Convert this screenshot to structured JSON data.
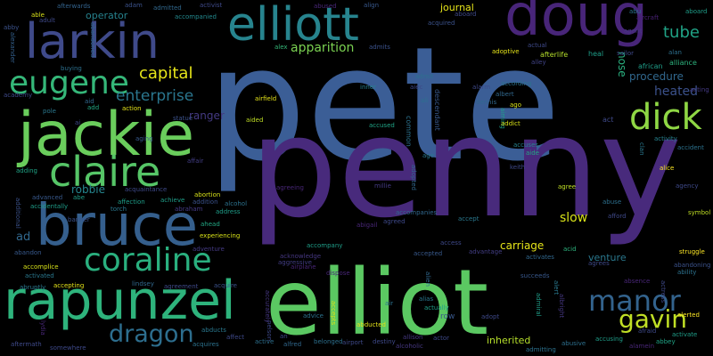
{
  "background": "#000000",
  "words": [
    {
      "text": "pete",
      "color": "#3b5e96"
    },
    {
      "text": "penny",
      "color": "#482a7c"
    },
    {
      "text": "elliot",
      "color": "#5bc862"
    },
    {
      "text": "doug",
      "color": "#482579"
    },
    {
      "text": "elliott",
      "color": "#27848e"
    },
    {
      "text": "larkin",
      "color": "#3f4a8a"
    },
    {
      "text": "jackie",
      "color": "#6acd5c"
    },
    {
      "text": "bruce",
      "color": "#355f8d"
    },
    {
      "text": "claire",
      "color": "#56c567"
    },
    {
      "text": "rapunzel",
      "color": "#2eb37c"
    },
    {
      "text": "coraline",
      "color": "#2ab07f"
    },
    {
      "text": "eugene",
      "color": "#35b779"
    },
    {
      "text": "dick",
      "color": "#8fd744"
    },
    {
      "text": "dragon",
      "color": "#2d6e8e"
    },
    {
      "text": "manor",
      "color": "#33638d"
    },
    {
      "text": "gavin",
      "color": "#c0df25"
    },
    {
      "text": "capital",
      "color": "#e5e419"
    },
    {
      "text": "enterprise",
      "color": "#2a768e"
    },
    {
      "text": "tube",
      "color": "#20a386"
    },
    {
      "text": "heated",
      "color": "#3b518b"
    },
    {
      "text": "procedure",
      "color": "#31688e"
    },
    {
      "text": "apparition",
      "color": "#7ad151"
    },
    {
      "text": "robbie",
      "color": "#25858e"
    },
    {
      "text": "carriage",
      "color": "#e5e419"
    },
    {
      "text": "slow",
      "color": "#d8e219"
    },
    {
      "text": "inherited",
      "color": "#b5de2b"
    },
    {
      "text": "venture",
      "color": "#2a788e"
    },
    {
      "text": "journal",
      "color": "#e5e419"
    },
    {
      "text": "nose",
      "color": "#2ab07f"
    },
    {
      "text": "african",
      "color": "#1f9e89"
    },
    {
      "text": "alliance",
      "color": "#2db27d"
    },
    {
      "text": "ranger",
      "color": "#443a83"
    },
    {
      "text": "adam",
      "color": "#3b528b"
    },
    {
      "text": "admitted",
      "color": "#31688e"
    },
    {
      "text": "activist",
      "color": "#3e4989"
    },
    {
      "text": "align",
      "color": "#38588c"
    },
    {
      "text": "aboard",
      "color": "#1f9e89"
    },
    {
      "text": "aircraft",
      "color": "#482173"
    },
    {
      "text": "abu",
      "color": "#2c728e"
    },
    {
      "text": "able",
      "color": "#d8e219"
    },
    {
      "text": "afterwards",
      "color": "#33638d"
    },
    {
      "text": "adult",
      "color": "#3e4989"
    },
    {
      "text": "operator",
      "color": "#26828e"
    },
    {
      "text": "accompanied",
      "color": "#23898e"
    },
    {
      "text": "abby",
      "color": "#3b528b"
    },
    {
      "text": "abandoned",
      "color": "#31688e"
    },
    {
      "text": "alexander",
      "color": "#34608d"
    },
    {
      "text": "alex",
      "color": "#35b779"
    },
    {
      "text": "admits",
      "color": "#3b528b"
    },
    {
      "text": "actual",
      "color": "#3e4989"
    },
    {
      "text": "adoptive",
      "color": "#e5e419"
    },
    {
      "text": "agent",
      "color": "#453781"
    },
    {
      "text": "heal",
      "color": "#1f9e89"
    },
    {
      "text": "sailor",
      "color": "#3e4989"
    },
    {
      "text": "afterlife",
      "color": "#b5de2b"
    },
    {
      "text": "alley",
      "color": "#414487"
    },
    {
      "text": "alan",
      "color": "#2d708e"
    },
    {
      "text": "buying",
      "color": "#2d708e"
    },
    {
      "text": "admit",
      "color": "#2d708e"
    },
    {
      "text": "alarm",
      "color": "#3e4989"
    },
    {
      "text": "according",
      "color": "#2c728e"
    },
    {
      "text": "airfield",
      "color": "#e5e419"
    },
    {
      "text": "inner",
      "color": "#27808e"
    },
    {
      "text": "acting",
      "color": "#443a83"
    },
    {
      "text": "aid",
      "color": "#31688e"
    },
    {
      "text": "add",
      "color": "#22a884"
    },
    {
      "text": "action",
      "color": "#e5e419"
    },
    {
      "text": "aided",
      "color": "#c0df25"
    },
    {
      "text": "statue",
      "color": "#3b528b"
    },
    {
      "text": "pole",
      "color": "#2a788e"
    },
    {
      "text": "ali",
      "color": "#2d708e"
    },
    {
      "text": "albert",
      "color": "#31688e"
    },
    {
      "text": "dennis",
      "color": "#31688e"
    },
    {
      "text": "ago",
      "color": "#d8e219"
    },
    {
      "text": "aiming",
      "color": "#1f9e89"
    },
    {
      "text": "accused",
      "color": "#20a486"
    },
    {
      "text": "addict",
      "color": "#d8e219"
    },
    {
      "text": "act",
      "color": "#3e4989"
    },
    {
      "text": "clan",
      "color": "#2a788e"
    },
    {
      "text": "activity",
      "color": "#26828e"
    },
    {
      "text": "accident",
      "color": "#2c728e"
    },
    {
      "text": "aging",
      "color": "#38598c"
    },
    {
      "text": "affair",
      "color": "#433e85"
    },
    {
      "text": "common",
      "color": "#2c728e"
    },
    {
      "text": "descendant",
      "color": "#38588c"
    },
    {
      "text": "age",
      "color": "#2a788e"
    },
    {
      "text": "keith",
      "color": "#3e4989"
    },
    {
      "text": "accuses",
      "color": "#26828e"
    },
    {
      "text": "aide",
      "color": "#22a884"
    },
    {
      "text": "alice",
      "color": "#fde725"
    },
    {
      "text": "adding",
      "color": "#20a486"
    },
    {
      "text": "abe",
      "color": "#1f9e89"
    },
    {
      "text": "acquaintance",
      "color": "#3e4989"
    },
    {
      "text": "achieve",
      "color": "#1f9e89"
    },
    {
      "text": "abortion",
      "color": "#d8e219"
    },
    {
      "text": "addition",
      "color": "#3b528b"
    },
    {
      "text": "alcohol",
      "color": "#2c728e"
    },
    {
      "text": "agreeing",
      "color": "#482677"
    },
    {
      "text": "millie",
      "color": "#443a83"
    },
    {
      "text": "adopted",
      "color": "#31688e"
    },
    {
      "text": "agree",
      "color": "#c0df25"
    },
    {
      "text": "agency",
      "color": "#3e4989"
    },
    {
      "text": "advanced",
      "color": "#38598c"
    },
    {
      "text": "accidentally",
      "color": "#1f9e89"
    },
    {
      "text": "affection",
      "color": "#1f9e89"
    },
    {
      "text": "torch",
      "color": "#2a788e"
    },
    {
      "text": "abraham",
      "color": "#443a83"
    },
    {
      "text": "address",
      "color": "#1f9e89"
    },
    {
      "text": "accompanies",
      "color": "#31688e"
    },
    {
      "text": "agreed",
      "color": "#3e4989"
    },
    {
      "text": "afford",
      "color": "#3e4989"
    },
    {
      "text": "abuse",
      "color": "#2d708e"
    },
    {
      "text": "symbol",
      "color": "#c0df25"
    },
    {
      "text": "banner",
      "color": "#3b528b"
    },
    {
      "text": "ahead",
      "color": "#22a884"
    },
    {
      "text": "experiencing",
      "color": "#d8e219"
    },
    {
      "text": "abigail",
      "color": "#482677"
    },
    {
      "text": "accept",
      "color": "#2a788e"
    },
    {
      "text": "additional",
      "color": "#3b528b"
    },
    {
      "text": "ad",
      "color": "#31688e"
    },
    {
      "text": "abandon",
      "color": "#38598c"
    },
    {
      "text": "adventure",
      "color": "#443a83"
    },
    {
      "text": "accompany",
      "color": "#1f9e89"
    },
    {
      "text": "access",
      "color": "#3e4989"
    },
    {
      "text": "advantage",
      "color": "#433e85"
    },
    {
      "text": "acid",
      "color": "#2db27d"
    },
    {
      "text": "struggle",
      "color": "#fde725"
    },
    {
      "text": "abandoning",
      "color": "#3b528b"
    },
    {
      "text": "accomplice",
      "color": "#d8e219"
    },
    {
      "text": "acknowledge",
      "color": "#453781"
    },
    {
      "text": "aggressive",
      "color": "#433e85"
    },
    {
      "text": "accepted",
      "color": "#38598c"
    },
    {
      "text": "activates",
      "color": "#31688e"
    },
    {
      "text": "agrees",
      "color": "#3e4989"
    },
    {
      "text": "ability",
      "color": "#2c728e"
    },
    {
      "text": "activated",
      "color": "#2a788e"
    },
    {
      "text": "airplane",
      "color": "#482677"
    },
    {
      "text": "dispose",
      "color": "#482677"
    },
    {
      "text": "accepting",
      "color": "#e5e419"
    },
    {
      "text": "lindsey",
      "color": "#31688e"
    },
    {
      "text": "agreement",
      "color": "#3e4989"
    },
    {
      "text": "acquire",
      "color": "#3b528b"
    },
    {
      "text": "absence",
      "color": "#482677"
    },
    {
      "text": "actress",
      "color": "#3e4989"
    },
    {
      "text": "succeeds",
      "color": "#38588c"
    },
    {
      "text": "abruptly",
      "color": "#2a788e"
    },
    {
      "text": "alert",
      "color": "#2a788e"
    },
    {
      "text": "alien",
      "color": "#31688e"
    },
    {
      "text": "alias",
      "color": "#2a788e"
    },
    {
      "text": "actually",
      "color": "#1f9e89"
    },
    {
      "text": "advice",
      "color": "#2c728e"
    },
    {
      "text": "accepts",
      "color": "#d8e219"
    },
    {
      "text": "air",
      "color": "#2c728e"
    },
    {
      "text": "row",
      "color": "#38588c"
    },
    {
      "text": "adopt",
      "color": "#3e4989"
    },
    {
      "text": "admiral",
      "color": "#1f9e89"
    },
    {
      "text": "albright",
      "color": "#453781"
    },
    {
      "text": "alerted",
      "color": "#fde725"
    },
    {
      "text": "afraid",
      "color": "#3e4989"
    },
    {
      "text": "activate",
      "color": "#1f9e89"
    },
    {
      "text": "aftermath",
      "color": "#3e4989"
    },
    {
      "text": "somewhere",
      "color": "#3e4989"
    },
    {
      "text": "acquires",
      "color": "#2c728e"
    },
    {
      "text": "abducts",
      "color": "#2a788e"
    },
    {
      "text": "affect",
      "color": "#3e4989"
    },
    {
      "text": "active",
      "color": "#2d708e"
    },
    {
      "text": "alfred",
      "color": "#31688e"
    },
    {
      "text": "belonged",
      "color": "#2d708e"
    },
    {
      "text": "airport",
      "color": "#3e4989"
    },
    {
      "text": "destiny",
      "color": "#3e4989"
    },
    {
      "text": "allison",
      "color": "#453781"
    },
    {
      "text": "actor",
      "color": "#3e4989"
    },
    {
      "text": "accusing",
      "color": "#1f9e89"
    },
    {
      "text": "abbey",
      "color": "#20a486"
    },
    {
      "text": "alamein",
      "color": "#482677"
    },
    {
      "text": "admitting",
      "color": "#2c728e"
    },
    {
      "text": "abusive",
      "color": "#2d708e"
    },
    {
      "text": "alcoholic",
      "color": "#453781"
    },
    {
      "text": "abducted",
      "color": "#e5e419"
    },
    {
      "text": "nelson",
      "color": "#3e4989"
    },
    {
      "text": "accurately",
      "color": "#453781"
    },
    {
      "text": "abused",
      "color": "#482677"
    },
    {
      "text": "acquired",
      "color": "#3b528b"
    },
    {
      "text": "aiec",
      "color": "#3e4989"
    },
    {
      "text": "academy",
      "color": "#3e4989"
    },
    {
      "text": "ai",
      "color": "#3e4989"
    },
    {
      "text": "lydia",
      "color": "#482677"
    },
    {
      "text": "an",
      "color": "#3e4989"
    },
    {
      "text": "aboard",
      "color": "#3e4989"
    }
  ]
}
